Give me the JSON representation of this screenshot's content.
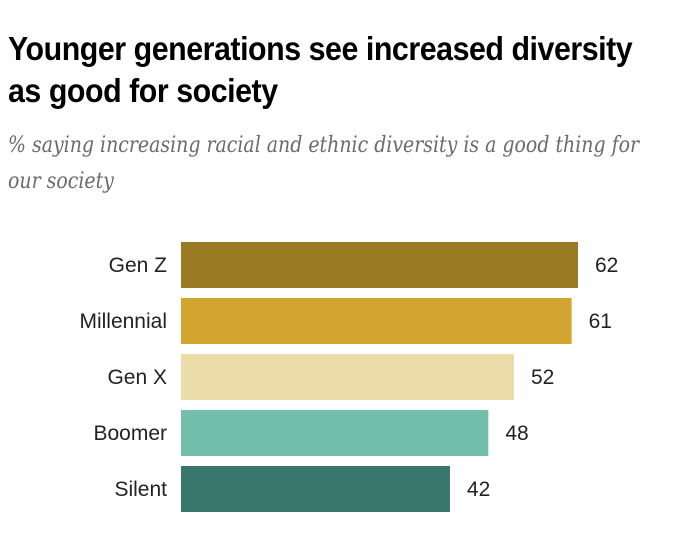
{
  "chart_data": {
    "type": "bar",
    "orientation": "horizontal",
    "title": "Younger generations see increased diversity as good for society",
    "subtitle": "% saying increasing racial and ethnic diversity is a good thing for our society",
    "xlabel": "",
    "ylabel": "",
    "categories": [
      "Gen Z",
      "Millennial",
      "Gen X",
      "Boomer",
      "Silent"
    ],
    "values": [
      62,
      61,
      52,
      48,
      42
    ],
    "colors": [
      "#9a7a23",
      "#d3a42f",
      "#ebdcaa",
      "#74bfac",
      "#38756a"
    ],
    "xlim": [
      0,
      62
    ],
    "grid": false,
    "legend": "none",
    "data_labels": true
  }
}
